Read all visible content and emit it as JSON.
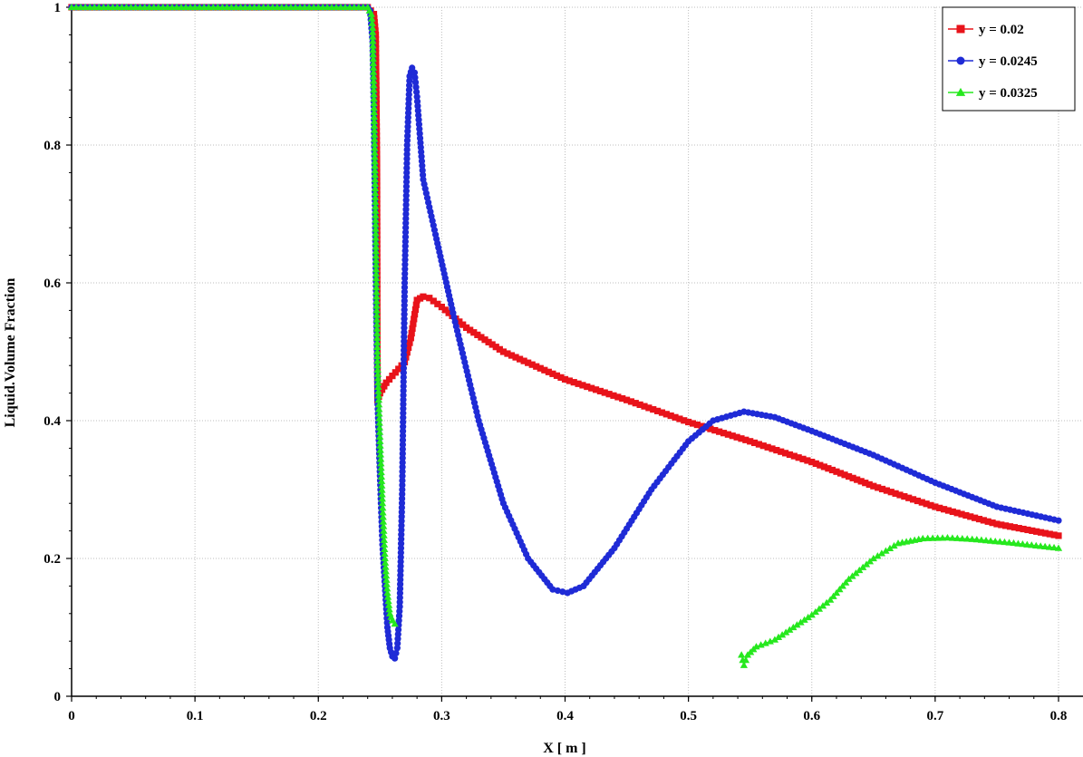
{
  "chart_data": {
    "type": "line",
    "xlabel": "X [ m ]",
    "ylabel": "Liquid.Volume Fraction",
    "xlim": [
      0,
      0.8
    ],
    "ylim": [
      0,
      1
    ],
    "x_ticks": [
      "0",
      "0.1",
      "0.2",
      "0.3",
      "0.4",
      "0.5",
      "0.6",
      "0.7",
      "0.8"
    ],
    "y_ticks": [
      "0",
      "0.2",
      "0.4",
      "0.6",
      "0.8",
      "1"
    ],
    "grid": true,
    "legend_position": "top-right",
    "series": [
      {
        "name": "y = 0.02",
        "color": "#e8131a",
        "marker": "square",
        "points": [
          [
            0,
            1
          ],
          [
            0.1,
            1
          ],
          [
            0.2,
            1
          ],
          [
            0.24,
            1
          ],
          [
            0.245,
            0.99
          ],
          [
            0.2465,
            0.96
          ],
          [
            0.2475,
            0.78
          ],
          [
            0.2478,
            0.52
          ],
          [
            0.248,
            0.43
          ],
          [
            0.25,
            0.44
          ],
          [
            0.255,
            0.455
          ],
          [
            0.26,
            0.465
          ],
          [
            0.27,
            0.485
          ],
          [
            0.275,
            0.52
          ],
          [
            0.28,
            0.575
          ],
          [
            0.285,
            0.58
          ],
          [
            0.29,
            0.578
          ],
          [
            0.3,
            0.565
          ],
          [
            0.32,
            0.535
          ],
          [
            0.35,
            0.5
          ],
          [
            0.4,
            0.46
          ],
          [
            0.45,
            0.43
          ],
          [
            0.5,
            0.398
          ],
          [
            0.55,
            0.37
          ],
          [
            0.6,
            0.34
          ],
          [
            0.65,
            0.305
          ],
          [
            0.7,
            0.275
          ],
          [
            0.75,
            0.25
          ],
          [
            0.8,
            0.233
          ]
        ]
      },
      {
        "name": "y = 0.0245",
        "color": "#1f2bd6",
        "marker": "circle",
        "points": [
          [
            0,
            1
          ],
          [
            0.1,
            1
          ],
          [
            0.2,
            1
          ],
          [
            0.24,
            1
          ],
          [
            0.242,
            0.995
          ],
          [
            0.244,
            0.95
          ],
          [
            0.245,
            0.85
          ],
          [
            0.246,
            0.7
          ],
          [
            0.247,
            0.55
          ],
          [
            0.248,
            0.43
          ],
          [
            0.25,
            0.32
          ],
          [
            0.252,
            0.22
          ],
          [
            0.254,
            0.16
          ],
          [
            0.256,
            0.1
          ],
          [
            0.258,
            0.07
          ],
          [
            0.26,
            0.058
          ],
          [
            0.262,
            0.055
          ],
          [
            0.264,
            0.07
          ],
          [
            0.266,
            0.13
          ],
          [
            0.268,
            0.3
          ],
          [
            0.27,
            0.6
          ],
          [
            0.272,
            0.8
          ],
          [
            0.274,
            0.9
          ],
          [
            0.276,
            0.912
          ],
          [
            0.278,
            0.905
          ],
          [
            0.28,
            0.87
          ],
          [
            0.285,
            0.75
          ],
          [
            0.295,
            0.67
          ],
          [
            0.31,
            0.55
          ],
          [
            0.33,
            0.4
          ],
          [
            0.35,
            0.28
          ],
          [
            0.37,
            0.2
          ],
          [
            0.39,
            0.155
          ],
          [
            0.402,
            0.15
          ],
          [
            0.415,
            0.16
          ],
          [
            0.44,
            0.215
          ],
          [
            0.47,
            0.3
          ],
          [
            0.5,
            0.37
          ],
          [
            0.52,
            0.4
          ],
          [
            0.545,
            0.413
          ],
          [
            0.57,
            0.405
          ],
          [
            0.6,
            0.385
          ],
          [
            0.65,
            0.35
          ],
          [
            0.7,
            0.31
          ],
          [
            0.75,
            0.275
          ],
          [
            0.8,
            0.255
          ]
        ]
      },
      {
        "name": "y = 0.0325",
        "color": "#26e81e",
        "marker": "triangle",
        "points": [
          [
            0,
            1
          ],
          [
            0.1,
            1
          ],
          [
            0.2,
            1
          ],
          [
            0.24,
            1
          ],
          [
            0.243,
            0.99
          ],
          [
            0.244,
            0.97
          ],
          [
            0.245,
            0.88
          ],
          [
            0.246,
            0.75
          ],
          [
            0.247,
            0.6
          ],
          [
            0.248,
            0.48
          ],
          [
            0.249,
            0.43
          ],
          [
            0.25,
            0.37
          ],
          [
            0.252,
            0.28
          ],
          [
            0.254,
            0.2
          ],
          [
            0.256,
            0.15
          ],
          [
            0.258,
            0.12
          ],
          [
            0.26,
            0.11
          ],
          [
            0.262,
            0.105
          ],
          [
            null,
            null
          ],
          [
            0.543,
            0.06
          ],
          [
            0.545,
            0.045
          ],
          [
            0.548,
            0.06
          ],
          [
            0.555,
            0.072
          ],
          [
            0.57,
            0.082
          ],
          [
            0.585,
            0.1
          ],
          [
            0.6,
            0.118
          ],
          [
            0.615,
            0.14
          ],
          [
            0.63,
            0.17
          ],
          [
            0.65,
            0.2
          ],
          [
            0.67,
            0.222
          ],
          [
            0.69,
            0.229
          ],
          [
            0.71,
            0.23
          ],
          [
            0.73,
            0.228
          ],
          [
            0.76,
            0.223
          ],
          [
            0.8,
            0.215
          ]
        ]
      }
    ]
  }
}
